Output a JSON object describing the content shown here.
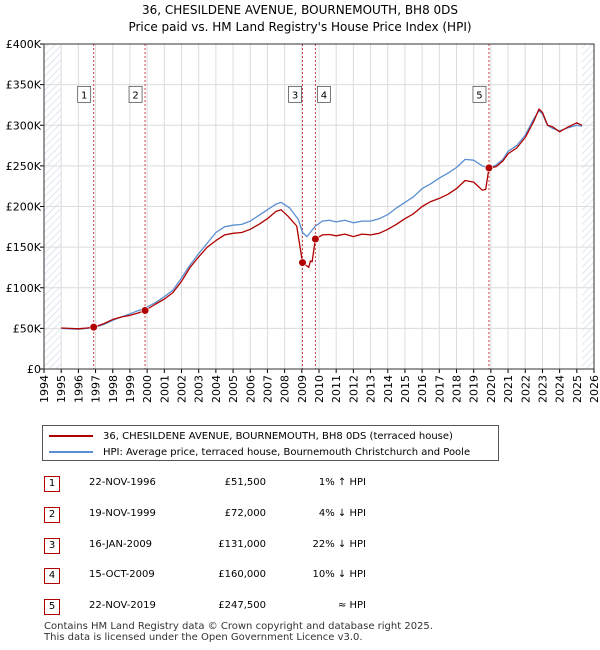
{
  "title_line1": "36, CHESILDENE AVENUE, BOURNEMOUTH, BH8 0DS",
  "title_line2": "Price paid vs. HM Land Registry's House Price Index (HPI)",
  "chart_data": {
    "type": "line",
    "title": "36, CHESILDENE AVENUE, BOURNEMOUTH, BH8 0DS — Price paid vs. HM Land Registry's House Price Index (HPI)",
    "xlabel": "",
    "ylabel": "",
    "xlim": [
      1994,
      2026
    ],
    "ylim": [
      0,
      400000
    ],
    "grid": true,
    "x_ticks": [
      "1994",
      "1995",
      "1996",
      "1997",
      "1998",
      "1999",
      "2000",
      "2001",
      "2002",
      "2003",
      "2004",
      "2005",
      "2006",
      "2007",
      "2008",
      "2009",
      "2010",
      "2011",
      "2012",
      "2013",
      "2014",
      "2015",
      "2016",
      "2017",
      "2018",
      "2019",
      "2020",
      "2021",
      "2022",
      "2023",
      "2024",
      "2025",
      "2026"
    ],
    "y_ticks": [
      {
        "value": 0,
        "label": "£0"
      },
      {
        "value": 50000,
        "label": "£50K"
      },
      {
        "value": 100000,
        "label": "£100K"
      },
      {
        "value": 150000,
        "label": "£150K"
      },
      {
        "value": 200000,
        "label": "£200K"
      },
      {
        "value": 250000,
        "label": "£250K"
      },
      {
        "value": 300000,
        "label": "£300K"
      },
      {
        "value": 350000,
        "label": "£350K"
      },
      {
        "value": 400000,
        "label": "£400K"
      }
    ],
    "series": [
      {
        "name": "36, CHESILDENE AVENUE, BOURNEMOUTH, BH8 0DS (terraced house)",
        "color": "#b00000",
        "points": [
          [
            1995.0,
            50500
          ],
          [
            1995.5,
            50000
          ],
          [
            1996.0,
            49500
          ],
          [
            1996.5,
            50500
          ],
          [
            1996.89,
            51500
          ],
          [
            1997.5,
            56000
          ],
          [
            1998.0,
            61000
          ],
          [
            1998.5,
            64000
          ],
          [
            1999.0,
            66000
          ],
          [
            1999.5,
            69000
          ],
          [
            1999.88,
            72000
          ],
          [
            2000.5,
            80000
          ],
          [
            2001.0,
            86000
          ],
          [
            2001.5,
            94000
          ],
          [
            2002.0,
            108000
          ],
          [
            2002.5,
            125000
          ],
          [
            2003.0,
            138000
          ],
          [
            2003.5,
            150000
          ],
          [
            2004.0,
            158000
          ],
          [
            2004.5,
            165000
          ],
          [
            2005.0,
            167000
          ],
          [
            2005.5,
            168000
          ],
          [
            2006.0,
            172000
          ],
          [
            2006.5,
            178000
          ],
          [
            2007.0,
            185000
          ],
          [
            2007.5,
            194000
          ],
          [
            2007.8,
            196000
          ],
          [
            2008.2,
            188000
          ],
          [
            2008.7,
            176000
          ],
          [
            2009.04,
            131000
          ],
          [
            2009.4,
            125000
          ],
          [
            2009.5,
            133000
          ],
          [
            2009.6,
            132000
          ],
          [
            2009.79,
            160000
          ],
          [
            2010.2,
            165000
          ],
          [
            2010.6,
            165500
          ],
          [
            2011.0,
            164000
          ],
          [
            2011.5,
            166000
          ],
          [
            2012.0,
            163000
          ],
          [
            2012.5,
            166000
          ],
          [
            2013.0,
            165000
          ],
          [
            2013.5,
            167000
          ],
          [
            2014.0,
            172000
          ],
          [
            2014.5,
            178000
          ],
          [
            2015.0,
            185000
          ],
          [
            2015.5,
            191000
          ],
          [
            2016.0,
            200000
          ],
          [
            2016.5,
            206000
          ],
          [
            2017.0,
            210000
          ],
          [
            2017.5,
            215000
          ],
          [
            2018.0,
            222000
          ],
          [
            2018.5,
            232000
          ],
          [
            2019.0,
            230000
          ],
          [
            2019.5,
            220000
          ],
          [
            2019.7,
            221000
          ],
          [
            2019.89,
            247500
          ],
          [
            2020.3,
            249000
          ],
          [
            2020.7,
            256000
          ],
          [
            2021.0,
            265000
          ],
          [
            2021.5,
            272000
          ],
          [
            2022.0,
            285000
          ],
          [
            2022.5,
            305000
          ],
          [
            2022.8,
            320000
          ],
          [
            2023.0,
            316000
          ],
          [
            2023.3,
            300000
          ],
          [
            2023.6,
            298000
          ],
          [
            2024.0,
            292000
          ],
          [
            2024.5,
            298000
          ],
          [
            2025.0,
            303000
          ],
          [
            2025.3,
            300000
          ]
        ]
      },
      {
        "name": "HPI: Average price, terraced house, Bournemouth Christchurch and Poole",
        "color": "#5b8fd1",
        "points": [
          [
            1995.0,
            50000
          ],
          [
            1995.5,
            49500
          ],
          [
            1996.0,
            49000
          ],
          [
            1996.5,
            50000
          ],
          [
            1996.89,
            51000
          ],
          [
            1997.5,
            55000
          ],
          [
            1998.0,
            60000
          ],
          [
            1998.5,
            64000
          ],
          [
            1999.0,
            68000
          ],
          [
            1999.5,
            72000
          ],
          [
            1999.88,
            75000
          ],
          [
            2000.5,
            82000
          ],
          [
            2001.0,
            89000
          ],
          [
            2001.5,
            97000
          ],
          [
            2002.0,
            112000
          ],
          [
            2002.5,
            128000
          ],
          [
            2003.0,
            142000
          ],
          [
            2003.5,
            155000
          ],
          [
            2004.0,
            168000
          ],
          [
            2004.5,
            175000
          ],
          [
            2005.0,
            177000
          ],
          [
            2005.5,
            178000
          ],
          [
            2006.0,
            182000
          ],
          [
            2006.5,
            189000
          ],
          [
            2007.0,
            196000
          ],
          [
            2007.5,
            203000
          ],
          [
            2007.8,
            205000
          ],
          [
            2008.3,
            198000
          ],
          [
            2008.8,
            184000
          ],
          [
            2009.04,
            168000
          ],
          [
            2009.3,
            163000
          ],
          [
            2009.79,
            176000
          ],
          [
            2010.2,
            182000
          ],
          [
            2010.6,
            183000
          ],
          [
            2011.0,
            181000
          ],
          [
            2011.5,
            183000
          ],
          [
            2012.0,
            180000
          ],
          [
            2012.5,
            182000
          ],
          [
            2013.0,
            182000
          ],
          [
            2013.5,
            185000
          ],
          [
            2014.0,
            190000
          ],
          [
            2014.5,
            198000
          ],
          [
            2015.0,
            205000
          ],
          [
            2015.5,
            212000
          ],
          [
            2016.0,
            222000
          ],
          [
            2016.5,
            228000
          ],
          [
            2017.0,
            235000
          ],
          [
            2017.5,
            241000
          ],
          [
            2018.0,
            248000
          ],
          [
            2018.5,
            258000
          ],
          [
            2019.0,
            257000
          ],
          [
            2019.5,
            250000
          ],
          [
            2019.89,
            247500
          ],
          [
            2020.3,
            251000
          ],
          [
            2020.7,
            258000
          ],
          [
            2021.0,
            268000
          ],
          [
            2021.5,
            275000
          ],
          [
            2022.0,
            288000
          ],
          [
            2022.5,
            308000
          ],
          [
            2022.8,
            318000
          ],
          [
            2023.0,
            314000
          ],
          [
            2023.3,
            300000
          ],
          [
            2023.6,
            296000
          ],
          [
            2024.0,
            293000
          ],
          [
            2024.5,
            297000
          ],
          [
            2025.0,
            300000
          ],
          [
            2025.3,
            299000
          ]
        ]
      }
    ],
    "sales": [
      {
        "n": "1",
        "x": 1996.89,
        "y": 51500
      },
      {
        "n": "2",
        "x": 1999.88,
        "y": 72000
      },
      {
        "n": "3",
        "x": 2009.04,
        "y": 131000
      },
      {
        "n": "4",
        "x": 2009.79,
        "y": 160000
      },
      {
        "n": "5",
        "x": 2019.89,
        "y": 247500
      }
    ],
    "marker_label_y": 338000,
    "data_end": 2025.3
  },
  "legend": {
    "property": "36, CHESILDENE AVENUE, BOURNEMOUTH, BH8 0DS (terraced house)",
    "hpi": "HPI: Average price, terraced house, Bournemouth Christchurch and Poole"
  },
  "colors": {
    "property": "#b00000",
    "hpi": "#5b8fd1",
    "hatch": "#d6def0",
    "grid": "#dcdcdc"
  },
  "sales_table": [
    {
      "n": "1",
      "date": "22-NOV-1996",
      "price": "£51,500",
      "hpi": "1% ↑ HPI"
    },
    {
      "n": "2",
      "date": "19-NOV-1999",
      "price": "£72,000",
      "hpi": "4% ↓ HPI"
    },
    {
      "n": "3",
      "date": "16-JAN-2009",
      "price": "£131,000",
      "hpi": "22% ↓ HPI"
    },
    {
      "n": "4",
      "date": "15-OCT-2009",
      "price": "£160,000",
      "hpi": "10% ↓ HPI"
    },
    {
      "n": "5",
      "date": "22-NOV-2019",
      "price": "£247,500",
      "hpi": "≈ HPI"
    }
  ],
  "footer": {
    "line1": "Contains HM Land Registry data © Crown copyright and database right 2025.",
    "line2": "This data is licensed under the Open Government Licence v3.0."
  }
}
